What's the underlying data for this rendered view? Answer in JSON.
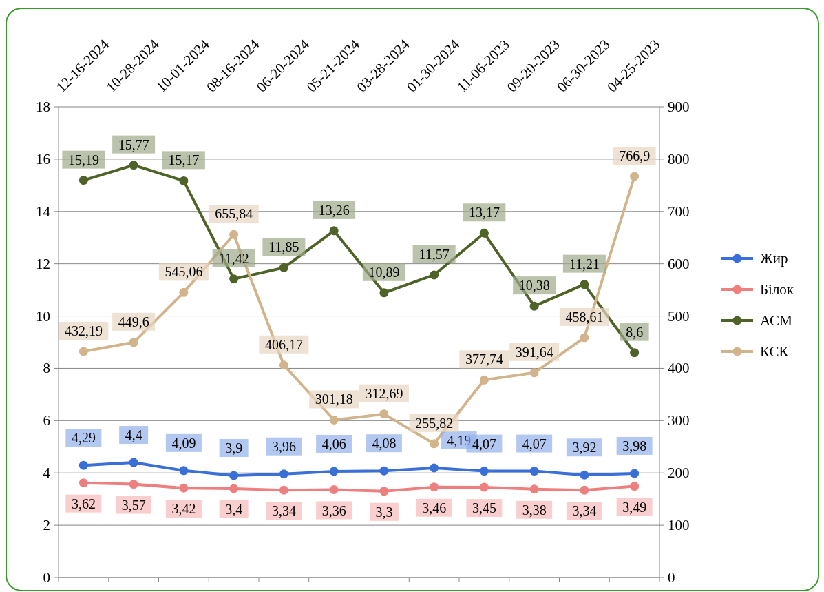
{
  "chart_data": {
    "type": "line",
    "categories": [
      "12-16-2024",
      "10-28-2024",
      "10-01-2024",
      "08-16-2024",
      "06-20-2024",
      "05-21-2024",
      "03-28-2024",
      "01-30-2024",
      "11-06-2023",
      "09-20-2023",
      "06-30-2023",
      "04-25-2023"
    ],
    "series": [
      {
        "name": "Жир",
        "color": "#3a6fd8",
        "values": [
          4.29,
          4.4,
          4.09,
          3.9,
          3.96,
          4.06,
          4.08,
          4.19,
          4.07,
          4.07,
          3.92,
          3.98
        ],
        "value_labels": [
          "4,29",
          "4,4",
          "4,09",
          "3,9",
          "3,96",
          "4,06",
          "4,08",
          "4,19",
          "4,07",
          "4,07",
          "3,92",
          "3,98"
        ]
      },
      {
        "name": "Білок",
        "color": "#ee7f7f",
        "values": [
          3.62,
          3.57,
          3.42,
          3.4,
          3.34,
          3.36,
          3.3,
          3.46,
          3.45,
          3.38,
          3.34,
          3.49
        ],
        "value_labels": [
          "3,62",
          "3,57",
          "3,42",
          "3,4",
          "3,34",
          "3,36",
          "3,3",
          "3,46",
          "3,45",
          "3,38",
          "3,34",
          "3,49"
        ]
      },
      {
        "name": "АСМ",
        "color": "#4f6228",
        "values": [
          15.19,
          15.77,
          15.17,
          11.42,
          11.85,
          13.26,
          10.89,
          11.57,
          13.17,
          10.38,
          11.21,
          8.6
        ],
        "value_labels": [
          "15,19",
          "15,77",
          "15,17",
          "11,42",
          "11,85",
          "13,26",
          "10,89",
          "11,57",
          "13,17",
          "10,38",
          "11,21",
          "8,6"
        ]
      },
      {
        "name": "КСК",
        "color": "#d2b48c",
        "axis": "y2",
        "values": [
          432.19,
          449.6,
          545.06,
          655.84,
          406.17,
          301.18,
          312.69,
          255.82,
          377.74,
          391.64,
          458.61,
          766.9
        ],
        "value_labels": [
          "432,19",
          "449,6",
          "545,06",
          "655,84",
          "406,17",
          "301,18",
          "312,69",
          "255,82",
          "377,74",
          "391,64",
          "458,61",
          "766,9"
        ]
      }
    ],
    "ylim": [
      0,
      18
    ],
    "yticks": [
      0,
      2,
      4,
      6,
      8,
      10,
      12,
      14,
      16,
      18
    ],
    "y2lim": [
      0,
      900
    ],
    "y2ticks": [
      0,
      100,
      200,
      300,
      400,
      500,
      600,
      700,
      800,
      900
    ],
    "grid": "y",
    "legend": "right",
    "marker": "circle"
  }
}
